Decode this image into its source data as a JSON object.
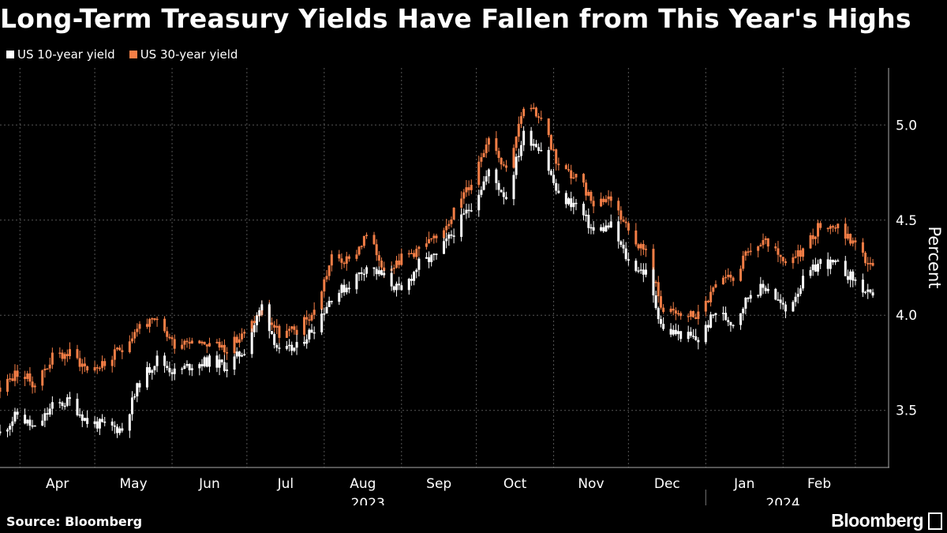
{
  "title": "Long-Term Treasury Yields Have Fallen from This Year's Highs",
  "source": "Source: Bloomberg",
  "brand": "Bloomberg",
  "colors": {
    "background": "#000000",
    "ten_year": "#ffffff",
    "thirty_year": "#f47e46",
    "grid": "#555555"
  },
  "chart_data": {
    "type": "line",
    "title": "Long-Term Treasury Yields Have Fallen from This Year's Highs",
    "xlabel": "",
    "ylabel": "Percent",
    "ylim": [
      3.2,
      5.3
    ],
    "y_ticks": [
      "3.5",
      "4.0",
      "4.5",
      "5.0"
    ],
    "month_labels": [
      "Apr",
      "May",
      "Jun",
      "Jul",
      "Aug",
      "Sep",
      "Oct",
      "Nov",
      "Dec",
      "Jan",
      "Feb"
    ],
    "year_labels": [
      "2023",
      "2024"
    ],
    "grid": true,
    "legend_position": "top-left",
    "x": [
      "2023-03-24",
      "2023-03-31",
      "2023-04-07",
      "2023-04-14",
      "2023-04-21",
      "2023-04-28",
      "2023-05-05",
      "2023-05-12",
      "2023-05-19",
      "2023-05-26",
      "2023-06-02",
      "2023-06-09",
      "2023-06-16",
      "2023-06-23",
      "2023-06-30",
      "2023-07-07",
      "2023-07-14",
      "2023-07-21",
      "2023-07-28",
      "2023-08-04",
      "2023-08-11",
      "2023-08-18",
      "2023-08-25",
      "2023-09-01",
      "2023-09-08",
      "2023-09-15",
      "2023-09-22",
      "2023-09-29",
      "2023-10-06",
      "2023-10-13",
      "2023-10-20",
      "2023-10-27",
      "2023-11-03",
      "2023-11-10",
      "2023-11-17",
      "2023-11-24",
      "2023-12-01",
      "2023-12-08",
      "2023-12-15",
      "2023-12-22",
      "2023-12-29",
      "2024-01-05",
      "2024-01-12",
      "2024-01-19",
      "2024-01-26",
      "2024-02-02",
      "2024-02-09",
      "2024-02-16",
      "2024-02-23",
      "2024-03-01",
      "2024-03-08"
    ],
    "series": [
      {
        "name": "US 10-year yield",
        "values": [
          3.38,
          3.48,
          3.4,
          3.52,
          3.55,
          3.44,
          3.42,
          3.4,
          3.65,
          3.77,
          3.7,
          3.74,
          3.76,
          3.73,
          3.82,
          4.05,
          3.8,
          3.83,
          3.94,
          4.1,
          4.16,
          4.26,
          4.2,
          4.12,
          4.27,
          4.31,
          4.44,
          4.58,
          4.75,
          4.62,
          4.95,
          4.88,
          4.62,
          4.58,
          4.44,
          4.47,
          4.28,
          4.22,
          3.92,
          3.9,
          3.87,
          4.02,
          3.96,
          4.12,
          4.15,
          4.02,
          4.18,
          4.28,
          4.26,
          4.18,
          4.08
        ]
      },
      {
        "name": "US 30-year yield",
        "values": [
          3.62,
          3.7,
          3.64,
          3.78,
          3.8,
          3.72,
          3.74,
          3.83,
          3.95,
          3.96,
          3.85,
          3.88,
          3.85,
          3.83,
          3.9,
          4.03,
          3.9,
          3.92,
          4.02,
          4.3,
          4.28,
          4.42,
          4.25,
          4.3,
          4.35,
          4.4,
          4.55,
          4.7,
          4.95,
          4.77,
          5.08,
          5.05,
          4.78,
          4.72,
          4.6,
          4.62,
          4.45,
          4.33,
          4.02,
          4.0,
          4.0,
          4.15,
          4.2,
          4.35,
          4.38,
          4.25,
          4.35,
          4.48,
          4.46,
          4.37,
          4.24
        ]
      }
    ]
  }
}
